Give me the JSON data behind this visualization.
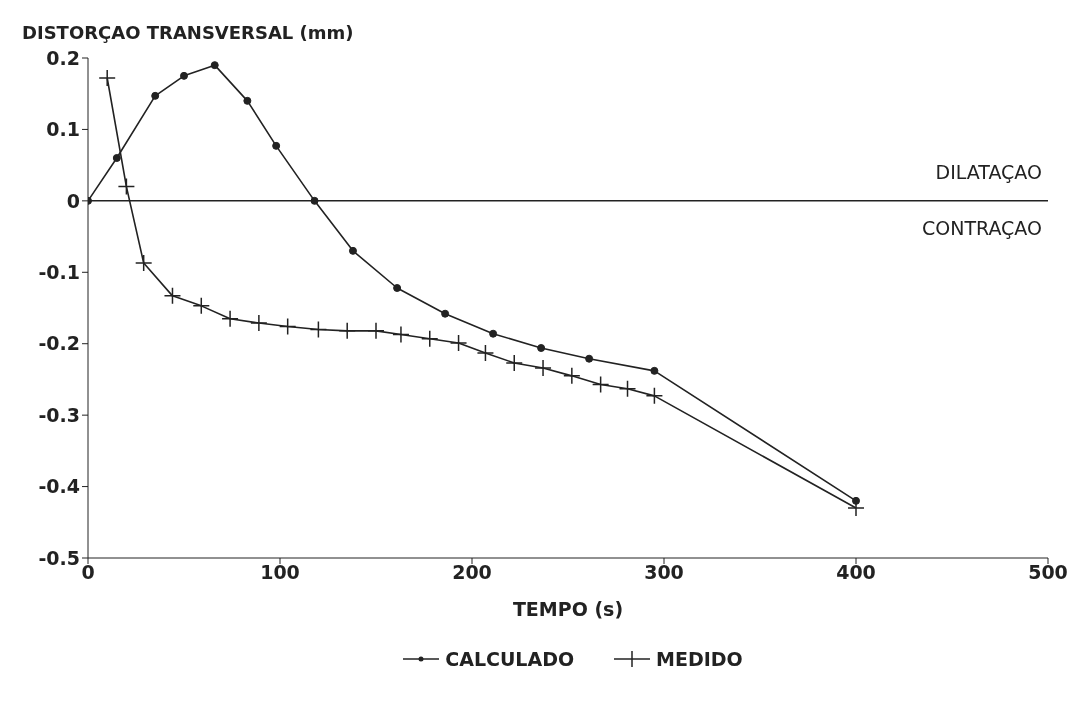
{
  "chart_data": {
    "type": "line",
    "ylabel": "DISTORÇAO TRANSVERSAL (mm)",
    "xlabel": "TEMPO (s)",
    "xlim": [
      0,
      500
    ],
    "xticks": [
      0,
      100,
      200,
      300,
      400,
      500
    ],
    "ylim": [
      -0.5,
      0.2
    ],
    "yticks": [
      {
        "value": -0.5,
        "label": "-0.5"
      },
      {
        "value": -0.4,
        "label": "-0.4"
      },
      {
        "value": -0.3,
        "label": "-0.3"
      },
      {
        "value": -0.2,
        "label": "-0.2"
      },
      {
        "value": -0.1,
        "label": "-0.1"
      },
      {
        "value": 0,
        "label": "0"
      },
      {
        "value": 0.1,
        "label": "0.1"
      },
      {
        "value": 0.2,
        "label": "0.2"
      }
    ],
    "grid": false,
    "legend": "bottom",
    "line_style": "solid",
    "ref_lines": [
      {
        "axis": "y",
        "value": 0,
        "color": "#222222"
      }
    ],
    "annotations": [
      "DILATAÇAO",
      "CONTRAÇAO"
    ],
    "series": [
      {
        "name": "CALCULADO",
        "color": "#222222",
        "marker": "circle",
        "x": [
          0,
          15,
          35,
          50,
          66,
          83,
          98,
          118,
          138,
          161,
          186,
          211,
          236,
          261,
          295,
          400
        ],
        "values": [
          0,
          0.06,
          0.147,
          0.175,
          0.19,
          0.14,
          0.077,
          0,
          -0.07,
          -0.122,
          -0.158,
          -0.186,
          -0.206,
          -0.221,
          -0.238,
          -0.42
        ]
      },
      {
        "name": "MEDIDO",
        "color": "#222222",
        "marker": "cross",
        "x": [
          10,
          20,
          29,
          44,
          59,
          74,
          89,
          104,
          120,
          135,
          150,
          163,
          178,
          193,
          207,
          222,
          237,
          252,
          267,
          281,
          295,
          400
        ],
        "values": [
          0.172,
          0.02,
          -0.087,
          -0.133,
          -0.147,
          -0.165,
          -0.171,
          -0.176,
          -0.18,
          -0.182,
          -0.182,
          -0.187,
          -0.193,
          -0.199,
          -0.213,
          -0.227,
          -0.234,
          -0.245,
          -0.257,
          -0.263,
          -0.273,
          -0.43
        ]
      }
    ]
  }
}
